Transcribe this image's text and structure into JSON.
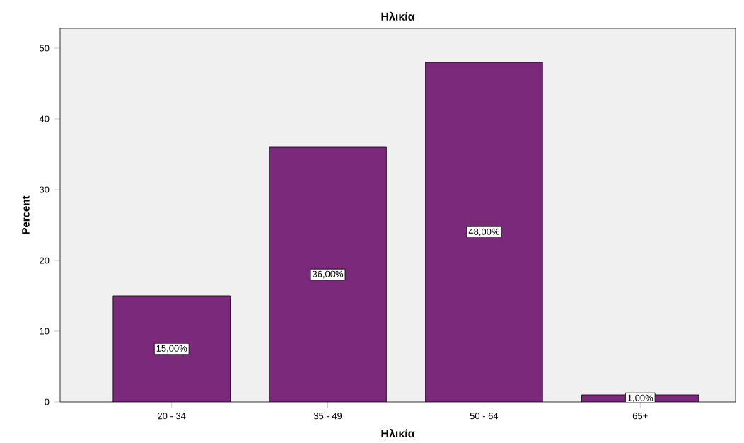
{
  "chart_data": {
    "type": "bar",
    "title": "Ηλικία",
    "xlabel": "Ηλικία",
    "ylabel": "Percent",
    "categories": [
      "20 - 34",
      "35 - 49",
      "50 - 64",
      "65+"
    ],
    "values": [
      15,
      36,
      48,
      1
    ],
    "value_labels": [
      "15,00%",
      "36,00%",
      "48,00%",
      "1,00%"
    ],
    "color": "#7b2a7b",
    "ylim": [
      0,
      52.8
    ],
    "yticks": [
      0,
      10,
      20,
      30,
      40,
      50
    ],
    "grid": false
  }
}
